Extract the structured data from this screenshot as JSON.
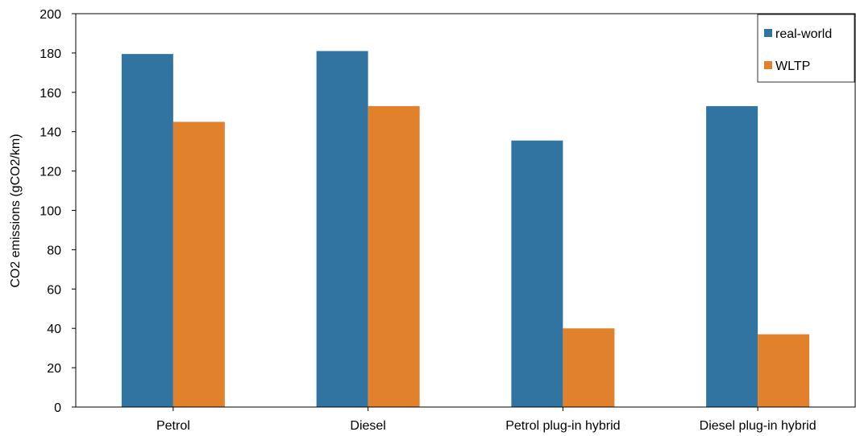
{
  "chart_data": {
    "type": "bar",
    "title": "",
    "xlabel": "",
    "ylabel": "CO2 emissions (gCO2/km)",
    "ylim": [
      0,
      200
    ],
    "yticks": [
      0,
      20,
      40,
      60,
      80,
      100,
      120,
      140,
      160,
      180,
      200
    ],
    "grid": false,
    "legend_position": "top-right",
    "categories": [
      "Petrol",
      "Diesel",
      "Petrol plug-in hybrid",
      "Diesel plug-in hybrid"
    ],
    "series": [
      {
        "name": "real-world",
        "color": "#3274a1",
        "values": [
          179.5,
          181,
          135.5,
          153
        ]
      },
      {
        "name": "WLTP",
        "color": "#e1812c",
        "values": [
          145,
          153,
          40,
          37
        ]
      }
    ]
  }
}
